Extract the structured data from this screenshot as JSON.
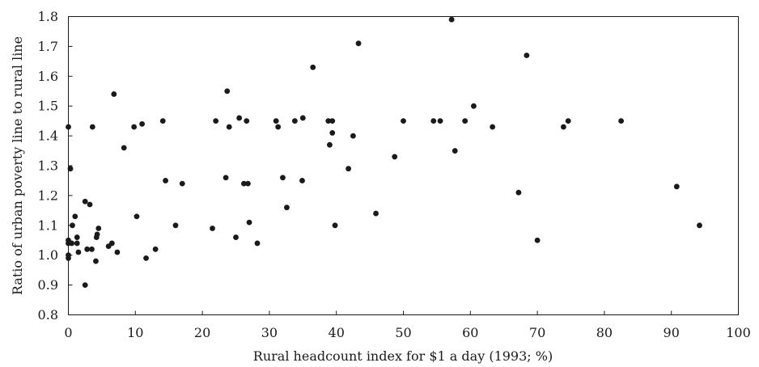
{
  "chart_data": {
    "type": "scatter",
    "title": "",
    "xlabel": "Rural headcount index for $1 a day (1993; %)",
    "ylabel": "Ratio of urban poverty line to rural line",
    "xlim": [
      0,
      100
    ],
    "ylim": [
      0.8,
      1.8
    ],
    "xticks": [
      "0",
      "10",
      "20",
      "30",
      "40",
      "50",
      "60",
      "70",
      "80",
      "90",
      "100"
    ],
    "yticks": [
      "0.8",
      "0.9",
      "1.0",
      "1.1",
      "1.2",
      "1.3",
      "1.4",
      "1.5",
      "1.6",
      "1.7",
      "1.8"
    ],
    "grid": false,
    "legend": "none",
    "marker_color": "#1a1a1a",
    "points": [
      [
        0.0,
        1.43
      ],
      [
        0.0,
        1.05
      ],
      [
        0.0,
        1.04
      ],
      [
        0.0,
        1.0
      ],
      [
        0.0,
        0.99
      ],
      [
        0.3,
        1.29
      ],
      [
        0.5,
        1.04
      ],
      [
        0.6,
        1.1
      ],
      [
        1.0,
        1.13
      ],
      [
        1.3,
        1.06
      ],
      [
        1.3,
        1.04
      ],
      [
        1.5,
        1.01
      ],
      [
        2.5,
        1.18
      ],
      [
        2.5,
        0.9
      ],
      [
        2.8,
        1.02
      ],
      [
        3.2,
        1.17
      ],
      [
        3.5,
        1.02
      ],
      [
        3.6,
        1.43
      ],
      [
        4.1,
        0.98
      ],
      [
        4.2,
        1.06
      ],
      [
        4.3,
        1.07
      ],
      [
        4.5,
        1.09
      ],
      [
        6.0,
        1.03
      ],
      [
        6.5,
        1.04
      ],
      [
        6.8,
        1.54
      ],
      [
        7.3,
        1.01
      ],
      [
        8.3,
        1.36
      ],
      [
        9.8,
        1.43
      ],
      [
        10.2,
        1.13
      ],
      [
        11.0,
        1.44
      ],
      [
        11.6,
        0.99
      ],
      [
        13.0,
        1.02
      ],
      [
        14.1,
        1.45
      ],
      [
        14.5,
        1.25
      ],
      [
        16.0,
        1.1
      ],
      [
        17.0,
        1.24
      ],
      [
        21.5,
        1.09
      ],
      [
        22.0,
        1.45
      ],
      [
        23.5,
        1.26
      ],
      [
        23.7,
        1.55
      ],
      [
        24.0,
        1.43
      ],
      [
        25.0,
        1.06
      ],
      [
        25.5,
        1.46
      ],
      [
        26.2,
        1.24
      ],
      [
        26.6,
        1.45
      ],
      [
        26.8,
        1.24
      ],
      [
        27.0,
        1.11
      ],
      [
        28.2,
        1.04
      ],
      [
        31.0,
        1.45
      ],
      [
        31.3,
        1.43
      ],
      [
        32.0,
        1.26
      ],
      [
        32.6,
        1.16
      ],
      [
        33.8,
        1.45
      ],
      [
        34.9,
        1.25
      ],
      [
        35.0,
        1.46
      ],
      [
        36.5,
        1.63
      ],
      [
        38.8,
        1.45
      ],
      [
        39.0,
        1.37
      ],
      [
        39.4,
        1.45
      ],
      [
        39.4,
        1.41
      ],
      [
        39.8,
        1.1
      ],
      [
        41.8,
        1.29
      ],
      [
        42.5,
        1.4
      ],
      [
        43.3,
        1.71
      ],
      [
        45.9,
        1.14
      ],
      [
        48.7,
        1.33
      ],
      [
        50.0,
        1.45
      ],
      [
        54.5,
        1.45
      ],
      [
        55.5,
        1.45
      ],
      [
        57.2,
        1.79
      ],
      [
        57.7,
        1.35
      ],
      [
        59.2,
        1.45
      ],
      [
        60.5,
        1.5
      ],
      [
        63.3,
        1.43
      ],
      [
        67.2,
        1.21
      ],
      [
        68.4,
        1.67
      ],
      [
        70.0,
        1.05
      ],
      [
        73.9,
        1.43
      ],
      [
        74.6,
        1.45
      ],
      [
        82.5,
        1.45
      ],
      [
        90.8,
        1.23
      ],
      [
        94.2,
        1.1
      ]
    ]
  }
}
